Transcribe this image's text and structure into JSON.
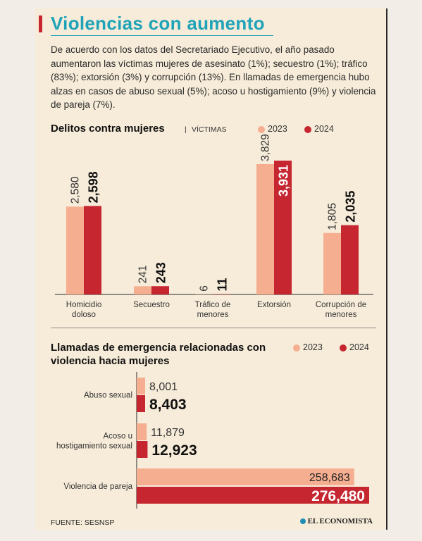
{
  "title": "Violencias con aumento",
  "intro": "De acuerdo con los datos del Secretariado Ejecutivo, el año pasado aumentaron las víctimas mujeres de asesinato (1%); secuestro (1%); tráfico (83%); extorsión (3%) y corrupción (13%). En llamadas de emergencia hubo alzas en casos de abuso sexual (5%); acoso u hostigamiento (9%) y violencia de pareja (7%).",
  "colors": {
    "y2023": "#f6ae91",
    "y2024": "#c5262f",
    "accent": "#20a3b8"
  },
  "chart_data": [
    {
      "type": "bar",
      "title": "Delitos contra mujeres",
      "subtitle": "VÍCTIMAS",
      "categories": [
        "Homicidio doloso",
        "Secuestro",
        "Tráfico de menores",
        "Extorsión",
        "Corrupción de menores"
      ],
      "series": [
        {
          "name": "2023",
          "values": [
            2580,
            241,
            6,
            3829,
            1805
          ],
          "labels": [
            "2,580",
            "241",
            "6",
            "3,829",
            "1,805"
          ]
        },
        {
          "name": "2024",
          "values": [
            2598,
            243,
            11,
            3931,
            2035
          ],
          "labels": [
            "2,598",
            "243",
            "11",
            "3,931",
            "2,035"
          ]
        }
      ],
      "legend": "top-right",
      "grid": false
    },
    {
      "type": "bar",
      "orientation": "horizontal",
      "title": "Llamadas de emergencia relacionadas con violencia hacia mujeres",
      "categories": [
        "Abuso sexual",
        "Acoso u hostigamiento sexual",
        "Violencia de pareja"
      ],
      "series": [
        {
          "name": "2023",
          "values": [
            8001,
            11879,
            258683
          ],
          "labels": [
            "8,001",
            "11,879",
            "258,683"
          ]
        },
        {
          "name": "2024",
          "values": [
            8403,
            12923,
            276480
          ],
          "labels": [
            "8,403",
            "12,923",
            "276,480"
          ]
        }
      ],
      "legend": "top-right",
      "grid": false
    }
  ],
  "source": "FUENTE: SESNSP",
  "brand": "EL ECONOMISTA"
}
